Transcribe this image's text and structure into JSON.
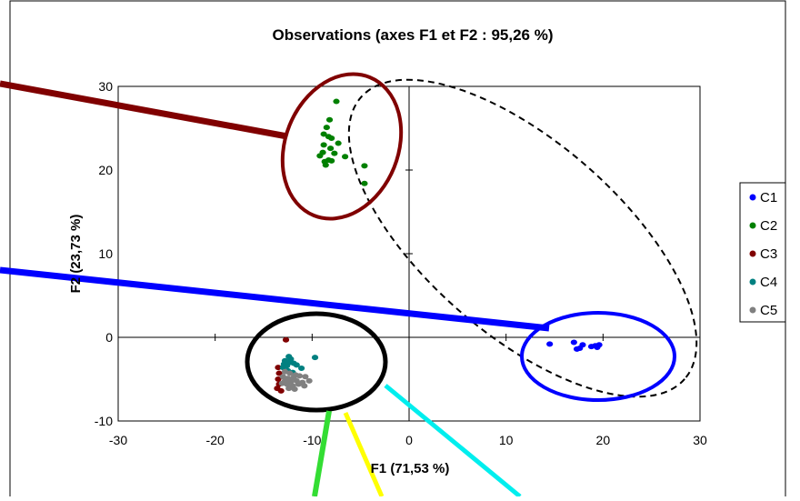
{
  "chart_data": {
    "type": "scatter",
    "title": "Observations (axes F1 et F2 : 95,26 %)",
    "xlabel": "F1 (71,53 %)",
    "ylabel": "F2 (23,73 %)",
    "xlim": [
      -30,
      30
    ],
    "ylim": [
      -10,
      30
    ],
    "xticks": [
      "-30",
      "-20",
      "-10",
      "0",
      "10",
      "20",
      "30"
    ],
    "yticks": [
      "-10",
      "0",
      "10",
      "20",
      "30"
    ],
    "grid": false,
    "legend_position": "right",
    "series": [
      {
        "name": "C1",
        "color": "#0000ff",
        "points": [
          [
            14.5,
            -0.8
          ],
          [
            17,
            -0.6
          ],
          [
            17.3,
            -1.4
          ],
          [
            17.6,
            -1.3
          ],
          [
            17.9,
            -0.9
          ],
          [
            18.8,
            -1.1
          ],
          [
            19.2,
            -1.0
          ],
          [
            19.6,
            -0.9
          ],
          [
            19.4,
            -1.2
          ]
        ]
      },
      {
        "name": "C2",
        "color": "#008000",
        "points": [
          [
            -7.5,
            28.2
          ],
          [
            -8.2,
            26.0
          ],
          [
            -8.5,
            25.1
          ],
          [
            -8.8,
            24.3
          ],
          [
            -8.3,
            24.0
          ],
          [
            -8.0,
            23.8
          ],
          [
            -7.3,
            23.2
          ],
          [
            -8.8,
            23.0
          ],
          [
            -8.1,
            22.6
          ],
          [
            -8.9,
            22.1
          ],
          [
            -9.2,
            21.7
          ],
          [
            -7.7,
            22.0
          ],
          [
            -6.6,
            21.6
          ],
          [
            -8.3,
            21.2
          ],
          [
            -8.7,
            21.0
          ],
          [
            -8.0,
            21.1
          ],
          [
            -8.6,
            20.6
          ],
          [
            -4.6,
            20.5
          ],
          [
            -4.6,
            18.4
          ]
        ]
      },
      {
        "name": "C3",
        "color": "#800000",
        "points": [
          [
            -12.7,
            -0.3
          ],
          [
            -13.5,
            -3.6
          ],
          [
            -13.4,
            -4.3
          ],
          [
            -13.5,
            -5.0
          ],
          [
            -13.4,
            -5.6
          ],
          [
            -13.6,
            -6.1
          ],
          [
            -13.2,
            -6.4
          ]
        ]
      },
      {
        "name": "C4",
        "color": "#008080",
        "points": [
          [
            -12.4,
            -2.3
          ],
          [
            -12.2,
            -2.6
          ],
          [
            -12.8,
            -2.8
          ],
          [
            -12.3,
            -3.0
          ],
          [
            -12.9,
            -3.2
          ],
          [
            -11.9,
            -3.1
          ],
          [
            -12.6,
            -3.4
          ],
          [
            -11.6,
            -3.3
          ],
          [
            -13.0,
            -3.6
          ],
          [
            -11.1,
            -3.7
          ],
          [
            -9.7,
            -2.4
          ],
          [
            -12.5,
            -4.0
          ],
          [
            -12.0,
            -4.2
          ]
        ]
      },
      {
        "name": "C5",
        "color": "#808080",
        "points": [
          [
            -12.8,
            -4.1
          ],
          [
            -12.3,
            -4.3
          ],
          [
            -11.7,
            -4.5
          ],
          [
            -13.0,
            -4.7
          ],
          [
            -12.5,
            -4.9
          ],
          [
            -11.9,
            -4.8
          ],
          [
            -11.3,
            -4.6
          ],
          [
            -10.7,
            -4.7
          ],
          [
            -12.8,
            -5.2
          ],
          [
            -12.2,
            -5.3
          ],
          [
            -11.6,
            -5.2
          ],
          [
            -11.0,
            -5.4
          ],
          [
            -12.6,
            -5.6
          ],
          [
            -12.0,
            -5.8
          ],
          [
            -11.4,
            -5.6
          ],
          [
            -10.8,
            -5.8
          ],
          [
            -12.4,
            -6.1
          ],
          [
            -11.8,
            -6.2
          ],
          [
            -13.1,
            -5.5
          ],
          [
            -10.3,
            -5.2
          ]
        ]
      }
    ]
  }
}
